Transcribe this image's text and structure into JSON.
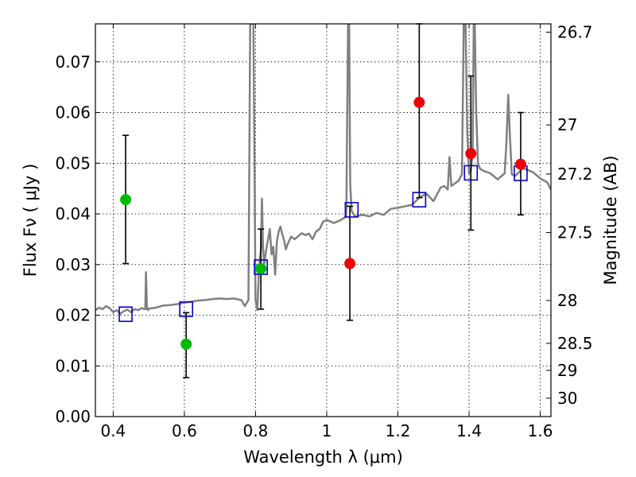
{
  "chart_data": {
    "type": "scatter",
    "xlabel": "Wavelength  λ (μm)",
    "ylabel": "Flux  Fν  ( μJy )",
    "y2label": "Magnitude (AB)",
    "xlim": [
      0.35,
      1.63
    ],
    "ylim": [
      0.0,
      0.0775
    ],
    "x_ticks": [
      0.4,
      0.6,
      0.8,
      1.0,
      1.2,
      1.4,
      1.6
    ],
    "x_tick_labels": [
      "0.4",
      "0.6",
      "0.8",
      "1",
      "1.2",
      "1.4",
      "1.6"
    ],
    "y_ticks": [
      0.0,
      0.01,
      0.02,
      0.03,
      0.04,
      0.05,
      0.06,
      0.07
    ],
    "y_tick_labels": [
      "0.00",
      "0.01",
      "0.02",
      "0.03",
      "0.04",
      "0.05",
      "0.06",
      "0.07"
    ],
    "mag_ticks": [
      26.7,
      27,
      27.2,
      27.5,
      28,
      28.5,
      29,
      30
    ],
    "mag_tick_labels": [
      "26.7",
      "27",
      "27.2",
      "27.5",
      "28",
      "28.5",
      "29",
      "30"
    ],
    "grid": true,
    "colors": {
      "spectrum": "#808080",
      "green_points": "#00bb00",
      "red_points": "#ee0000",
      "model_squares": "#0000cc",
      "errorbars": "#000000"
    },
    "series": [
      {
        "marker": "square",
        "points": [
          {
            "x": 0.435,
            "y": 0.0202
          },
          {
            "x": 0.605,
            "y": 0.0212
          },
          {
            "x": 0.815,
            "y": 0.0295
          },
          {
            "x": 1.07,
            "y": 0.0408
          },
          {
            "x": 1.26,
            "y": 0.0428
          },
          {
            "x": 1.405,
            "y": 0.0481
          },
          {
            "x": 1.545,
            "y": 0.048
          }
        ]
      },
      {
        "marker": "circle",
        "points": [
          {
            "x": 0.435,
            "y": 0.0428,
            "ylo": 0.0302,
            "yhi": 0.0555
          },
          {
            "x": 0.605,
            "y": 0.0143,
            "ylo": 0.0077,
            "yhi": 0.0205
          },
          {
            "x": 0.815,
            "y": 0.0292,
            "ylo": 0.0212,
            "yhi": 0.037
          }
        ]
      },
      {
        "marker": "circle",
        "points": [
          {
            "x": 1.065,
            "y": 0.0302,
            "ylo": 0.019,
            "yhi": 0.0415
          },
          {
            "x": 1.26,
            "y": 0.062,
            "ylo": 0.0432,
            "yhi": 0.0775
          },
          {
            "x": 1.405,
            "y": 0.0519,
            "ylo": 0.0368,
            "yhi": 0.0672
          },
          {
            "x": 1.545,
            "y": 0.0498,
            "ylo": 0.0398,
            "yhi": 0.06
          }
        ]
      }
    ],
    "spectrum": {
      "x": [
        0.35,
        0.36,
        0.37,
        0.38,
        0.39,
        0.4,
        0.41,
        0.42,
        0.43,
        0.44,
        0.45,
        0.46,
        0.47,
        0.48,
        0.49,
        0.492,
        0.495,
        0.498,
        0.5,
        0.52,
        0.54,
        0.56,
        0.58,
        0.6,
        0.62,
        0.64,
        0.66,
        0.68,
        0.7,
        0.72,
        0.74,
        0.76,
        0.77,
        0.78,
        0.785,
        0.788,
        0.791,
        0.794,
        0.797,
        0.8,
        0.805,
        0.81,
        0.815,
        0.818,
        0.821,
        0.824,
        0.83,
        0.84,
        0.845,
        0.85,
        0.855,
        0.86,
        0.865,
        0.87,
        0.875,
        0.88,
        0.885,
        0.89,
        0.9,
        0.91,
        0.92,
        0.93,
        0.94,
        0.95,
        0.96,
        0.97,
        0.98,
        0.99,
        1.0,
        1.02,
        1.04,
        1.055,
        1.06,
        1.063,
        1.066,
        1.07,
        1.08,
        1.1,
        1.12,
        1.14,
        1.16,
        1.18,
        1.2,
        1.22,
        1.24,
        1.26,
        1.28,
        1.3,
        1.32,
        1.33,
        1.34,
        1.345,
        1.35,
        1.36,
        1.37,
        1.38,
        1.385,
        1.39,
        1.395,
        1.4,
        1.405,
        1.41,
        1.413,
        1.416,
        1.42,
        1.425,
        1.43,
        1.44,
        1.46,
        1.48,
        1.5,
        1.505,
        1.51,
        1.515,
        1.52,
        1.53,
        1.54,
        1.55,
        1.56,
        1.58,
        1.6,
        1.62,
        1.63
      ],
      "y": [
        0.021,
        0.0215,
        0.0212,
        0.0218,
        0.0214,
        0.0206,
        0.021,
        0.0203,
        0.0208,
        0.0211,
        0.0206,
        0.0212,
        0.021,
        0.0214,
        0.0212,
        0.0285,
        0.0213,
        0.021,
        0.0213,
        0.0215,
        0.0219,
        0.022,
        0.0222,
        0.0225,
        0.0227,
        0.0229,
        0.023,
        0.0232,
        0.0233,
        0.0232,
        0.0233,
        0.023,
        0.0218,
        0.023,
        0.0775,
        0.0775,
        0.0775,
        0.0775,
        0.05,
        0.023,
        0.021,
        0.0295,
        0.033,
        0.043,
        0.0335,
        0.03,
        0.033,
        0.037,
        0.032,
        0.0335,
        0.028,
        0.0345,
        0.0365,
        0.0375,
        0.036,
        0.0348,
        0.033,
        0.034,
        0.0355,
        0.035,
        0.0356,
        0.0362,
        0.0358,
        0.0361,
        0.035,
        0.0365,
        0.037,
        0.0385,
        0.0388,
        0.0382,
        0.0388,
        0.0395,
        0.0775,
        0.0775,
        0.046,
        0.0405,
        0.0395,
        0.0398,
        0.0395,
        0.0402,
        0.0398,
        0.041,
        0.0412,
        0.0415,
        0.0418,
        0.0432,
        0.044,
        0.0425,
        0.0452,
        0.0455,
        0.0448,
        0.0512,
        0.0455,
        0.046,
        0.0465,
        0.0478,
        0.0775,
        0.0775,
        0.056,
        0.048,
        0.0485,
        0.052,
        0.0775,
        0.0775,
        0.06,
        0.05,
        0.049,
        0.0485,
        0.048,
        0.0468,
        0.048,
        0.054,
        0.0635,
        0.055,
        0.0478,
        0.0475,
        0.0482,
        0.049,
        0.0488,
        0.0482,
        0.047,
        0.0462,
        0.0448
      ]
    }
  }
}
